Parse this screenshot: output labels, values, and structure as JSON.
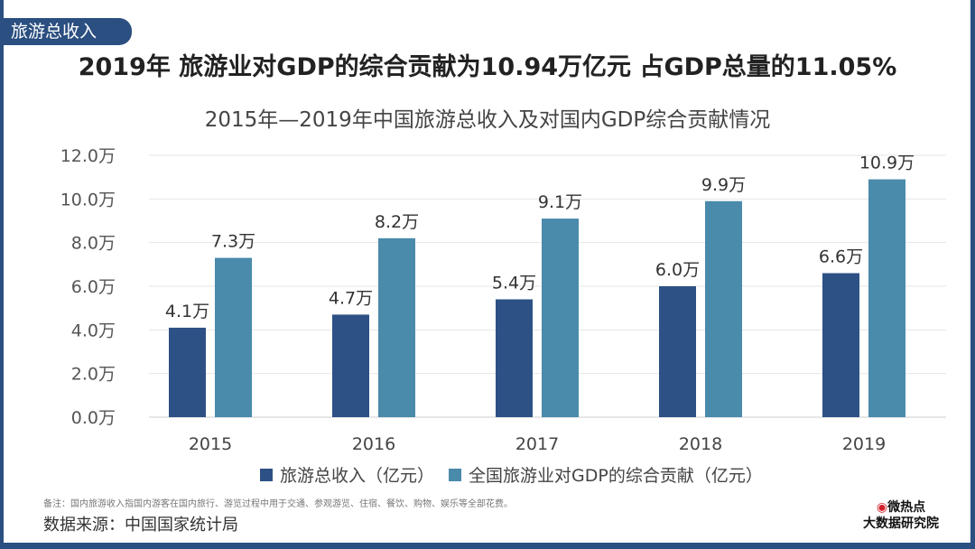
{
  "tag": "旅游总收入",
  "headline": "2019年 旅游业对GDP的综合贡献为10.94万亿元 占GDP总量的11.05%",
  "note": "备注：国内旅游收入指国内游客在国内旅行、游览过程中用于交通、参观游览、住宿、餐饮、购物、娱乐等全部花费。",
  "source": "数据来源：中国国家统计局",
  "logo": {
    "line1": "微热点",
    "line2": "大数据研究院"
  },
  "chart_data": {
    "type": "bar",
    "title": "2015年—2019年中国旅游总收入及对国内GDP综合贡献情况",
    "categories": [
      "2015",
      "2016",
      "2017",
      "2018",
      "2019"
    ],
    "series": [
      {
        "name": "旅游总收入（亿元）",
        "values": [
          4.1,
          4.7,
          5.4,
          6.0,
          6.6
        ],
        "labels": [
          "4.1万",
          "4.7万",
          "5.4万",
          "6.0万",
          "6.6万"
        ],
        "color": "#2d5185"
      },
      {
        "name": "全国旅游业对GDP的综合贡献（亿元）",
        "values": [
          7.3,
          8.2,
          9.1,
          9.9,
          10.9
        ],
        "labels": [
          "7.3万",
          "8.2万",
          "9.1万",
          "9.9万",
          "10.9万"
        ],
        "color": "#4a8aab"
      }
    ],
    "yticks": [
      "0.0万",
      "2.0万",
      "4.0万",
      "6.0万",
      "8.0万",
      "10.0万",
      "12.0万"
    ],
    "ylim": [
      0,
      12
    ],
    "grid": true,
    "legend": "bottom"
  }
}
